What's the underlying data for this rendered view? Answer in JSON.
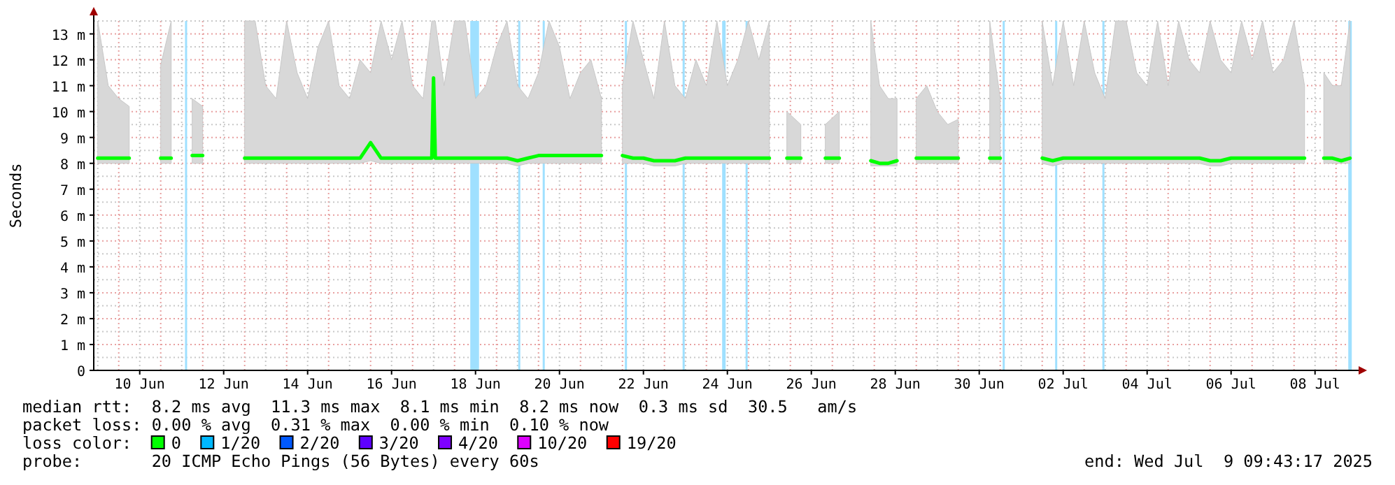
{
  "chart_data": {
    "type": "line",
    "ylabel": "Seconds",
    "legend_title": "loss color:",
    "legend": "bottom",
    "grid": true,
    "marker": "none",
    "line_style": "solid",
    "xlim": [
      "2025-06-09T09:43",
      "2025-07-09T09:43"
    ],
    "xticks": [
      {
        "value": "2025-06-10T12:00",
        "label": "10 Jun"
      },
      {
        "value": "2025-06-12T12:00",
        "label": "12 Jun"
      },
      {
        "value": "2025-06-14T12:00",
        "label": "14 Jun"
      },
      {
        "value": "2025-06-16T12:00",
        "label": "16 Jun"
      },
      {
        "value": "2025-06-18T12:00",
        "label": "18 Jun"
      },
      {
        "value": "2025-06-20T12:00",
        "label": "20 Jun"
      },
      {
        "value": "2025-06-22T12:00",
        "label": "22 Jun"
      },
      {
        "value": "2025-06-24T12:00",
        "label": "24 Jun"
      },
      {
        "value": "2025-06-26T12:00",
        "label": "26 Jun"
      },
      {
        "value": "2025-06-28T12:00",
        "label": "28 Jun"
      },
      {
        "value": "2025-06-30T12:00",
        "label": "30 Jun"
      },
      {
        "value": "2025-07-02T12:00",
        "label": "02 Jul"
      },
      {
        "value": "2025-07-04T12:00",
        "label": "04 Jul"
      },
      {
        "value": "2025-07-06T12:00",
        "label": "06 Jul"
      },
      {
        "value": "2025-07-08T12:00",
        "label": "08 Jul"
      }
    ],
    "ylim": [
      0,
      13.5
    ],
    "yticks": [
      0,
      {
        "value": 1,
        "label": "1 m"
      },
      {
        "value": 2,
        "label": "2 m"
      },
      {
        "value": 3,
        "label": "3 m"
      },
      {
        "value": 4,
        "label": "4 m"
      },
      {
        "value": 5,
        "label": "5 m"
      },
      {
        "value": 6,
        "label": "6 m"
      },
      {
        "value": 7,
        "label": "7 m"
      },
      {
        "value": 8,
        "label": "8 m"
      },
      {
        "value": 9,
        "label": "9 m"
      },
      {
        "value": 10,
        "label": "10 m"
      },
      {
        "value": 11,
        "label": "11 m"
      },
      {
        "value": 12,
        "label": "12 m"
      },
      {
        "value": 13,
        "label": "13 m"
      }
    ],
    "series": [
      {
        "name": "0",
        "color": "#00ff00",
        "x": [
          "2025-06-09T12:00",
          "2025-06-09T18:00",
          "2025-06-10T00:00",
          "2025-06-10T06:00",
          "2025-06-10T12:00",
          "2025-06-10T18:00",
          "2025-06-11T00:00",
          "2025-06-11T06:00",
          "2025-06-11T12:00",
          "2025-06-11T18:00",
          "2025-06-12T00:00",
          "2025-06-12T06:00",
          "2025-06-12T12:00",
          "2025-06-12T18:00",
          "2025-06-13T00:00",
          "2025-06-13T06:00",
          "2025-06-13T12:00",
          "2025-06-13T18:00",
          "2025-06-14T00:00",
          "2025-06-14T06:00",
          "2025-06-14T12:00",
          "2025-06-14T18:00",
          "2025-06-15T00:00",
          "2025-06-15T06:00",
          "2025-06-15T12:00",
          "2025-06-15T18:00",
          "2025-06-16T00:00",
          "2025-06-16T06:00",
          "2025-06-16T12:00",
          "2025-06-16T18:00",
          "2025-06-17T00:00",
          "2025-06-17T06:00",
          "2025-06-17T11:00",
          "2025-06-17T12:00",
          "2025-06-17T13:00",
          "2025-06-17T18:00",
          "2025-06-18T00:00",
          "2025-06-18T06:00",
          "2025-06-18T12:00",
          "2025-06-18T18:00",
          "2025-06-19T00:00",
          "2025-06-19T06:00",
          "2025-06-19T12:00",
          "2025-06-19T18:00",
          "2025-06-20T00:00",
          "2025-06-20T06:00",
          "2025-06-20T12:00",
          "2025-06-20T18:00",
          "2025-06-21T00:00",
          "2025-06-21T06:00",
          "2025-06-21T12:00",
          "2025-06-21T18:00",
          "2025-06-22T00:00",
          "2025-06-22T06:00",
          "2025-06-22T12:00",
          "2025-06-22T18:00",
          "2025-06-23T00:00",
          "2025-06-23T06:00",
          "2025-06-23T12:00",
          "2025-06-23T18:00",
          "2025-06-24T00:00",
          "2025-06-24T06:00",
          "2025-06-24T12:00",
          "2025-06-24T18:00",
          "2025-06-25T00:00",
          "2025-06-25T06:00",
          "2025-06-25T12:00",
          "2025-06-25T18:00",
          "2025-06-25T22:00",
          "2025-06-26T06:00",
          "2025-06-26T09:00",
          "2025-06-26T12:00",
          "2025-06-26T18:00",
          "2025-06-26T20:00",
          "2025-06-27T04:00",
          "2025-06-27T06:00",
          "2025-06-27T12:00",
          "2025-06-27T18:00",
          "2025-06-27T22:00",
          "2025-06-28T03:00",
          "2025-06-28T08:00",
          "2025-06-28T13:00",
          "2025-06-28T18:00",
          "2025-06-29T00:00",
          "2025-06-29T06:00",
          "2025-06-29T12:00",
          "2025-06-29T18:00",
          "2025-06-30T00:00",
          "2025-06-30T06:00",
          "2025-06-30T12:00",
          "2025-06-30T18:00",
          "2025-07-01T00:00",
          "2025-07-01T06:00",
          "2025-07-01T12:00",
          "2025-07-01T18:00",
          "2025-07-02T00:00",
          "2025-07-02T06:00",
          "2025-07-02T12:00",
          "2025-07-02T18:00",
          "2025-07-03T00:00",
          "2025-07-03T06:00",
          "2025-07-03T12:00",
          "2025-07-03T18:00",
          "2025-07-04T00:00",
          "2025-07-04T06:00",
          "2025-07-04T12:00",
          "2025-07-04T18:00",
          "2025-07-05T00:00",
          "2025-07-05T06:00",
          "2025-07-05T12:00",
          "2025-07-05T18:00",
          "2025-07-06T00:00",
          "2025-07-06T06:00",
          "2025-07-06T12:00",
          "2025-07-06T18:00",
          "2025-07-07T00:00",
          "2025-07-07T06:00",
          "2025-07-07T12:00",
          "2025-07-07T18:00",
          "2025-07-08T00:00",
          "2025-07-08T06:00",
          "2025-07-08T12:00",
          "2025-07-08T17:00",
          "2025-07-08T22:00",
          "2025-07-09T03:00",
          "2025-07-09T08:00"
        ],
        "values": [
          8.2,
          8.2,
          8.2,
          8.2,
          null,
          null,
          8.2,
          8.2,
          null,
          8.3,
          8.3,
          null,
          null,
          null,
          8.2,
          8.2,
          8.2,
          8.2,
          8.2,
          8.2,
          8.2,
          8.2,
          8.2,
          8.2,
          8.2,
          8.2,
          8.8,
          8.2,
          8.2,
          8.2,
          8.2,
          8.2,
          8.2,
          11.3,
          8.2,
          8.2,
          8.2,
          8.2,
          8.2,
          8.2,
          8.2,
          8.2,
          8.1,
          8.2,
          8.3,
          8.3,
          8.3,
          8.3,
          8.3,
          8.3,
          8.3,
          null,
          8.3,
          8.2,
          8.2,
          8.1,
          8.1,
          8.1,
          8.2,
          8.2,
          8.2,
          8.2,
          8.2,
          8.2,
          8.2,
          8.2,
          8.2,
          null,
          8.2,
          8.2,
          null,
          null,
          null,
          8.2,
          8.2,
          null,
          null,
          null,
          8.1,
          8.0,
          8.0,
          8.1,
          null,
          8.2,
          8.2,
          8.2,
          8.2,
          8.2,
          null,
          null,
          8.2,
          8.2,
          null,
          null,
          null,
          8.2,
          8.1,
          8.2,
          8.2,
          8.2,
          8.2,
          8.2,
          8.2,
          8.2,
          8.2,
          8.2,
          8.2,
          8.2,
          8.2,
          8.2,
          8.2,
          8.1,
          8.1,
          8.2,
          8.2,
          8.2,
          8.2,
          8.2,
          8.2,
          8.2,
          8.2,
          null,
          8.2,
          8.2,
          8.1,
          8.2
        ],
        "lower": [
          8.0,
          8.0,
          8.0,
          8.0,
          null,
          null,
          8.0,
          8.0,
          null,
          8.0,
          8.0,
          null,
          null,
          null,
          8.0,
          8.0,
          8.0,
          8.0,
          8.0,
          8.0,
          8.0,
          8.0,
          8.0,
          8.0,
          8.0,
          8.0,
          8.1,
          8.0,
          8.0,
          8.0,
          8.0,
          8.0,
          8.0,
          8.0,
          8.0,
          8.0,
          8.0,
          8.0,
          8.0,
          8.0,
          8.0,
          8.0,
          7.9,
          8.0,
          8.0,
          8.0,
          8.0,
          8.0,
          8.0,
          8.0,
          8.0,
          null,
          8.0,
          8.0,
          8.0,
          7.9,
          7.9,
          7.9,
          8.0,
          8.0,
          8.0,
          8.0,
          8.0,
          8.0,
          8.0,
          8.0,
          8.0,
          null,
          8.0,
          8.0,
          null,
          null,
          null,
          8.0,
          8.0,
          null,
          null,
          null,
          7.9,
          7.9,
          7.9,
          7.9,
          null,
          8.0,
          8.0,
          8.0,
          8.0,
          8.0,
          null,
          null,
          8.0,
          8.0,
          null,
          null,
          null,
          8.0,
          7.9,
          8.0,
          8.0,
          8.0,
          8.0,
          8.0,
          8.0,
          8.0,
          8.0,
          8.0,
          8.0,
          8.0,
          8.0,
          8.0,
          8.0,
          7.9,
          7.9,
          8.0,
          8.0,
          8.0,
          8.0,
          8.0,
          8.0,
          8.0,
          8.0,
          null,
          8.0,
          8.0,
          8.0,
          8.0
        ],
        "upper": [
          13.5,
          11,
          10.5,
          10.2,
          null,
          null,
          11.8,
          13.5,
          null,
          10.5,
          10.2,
          null,
          null,
          null,
          13.5,
          13.5,
          11,
          10.5,
          13.5,
          11.5,
          10.5,
          12.5,
          13.5,
          11,
          10.5,
          12,
          11.5,
          13.5,
          12,
          13.5,
          11,
          10.5,
          13.5,
          13.5,
          13.5,
          11,
          13.5,
          13.5,
          10.5,
          11,
          12.5,
          13.5,
          11,
          10.5,
          11.5,
          13.5,
          12.5,
          10.5,
          11.5,
          12,
          10.5,
          null,
          11,
          13.5,
          12,
          10.5,
          13.5,
          11,
          10.5,
          12,
          11,
          13.5,
          11,
          12,
          13.5,
          12,
          13.5,
          null,
          10,
          9.5,
          null,
          null,
          null,
          9.5,
          10,
          null,
          null,
          null,
          13.5,
          11,
          10.5,
          10.5,
          null,
          10.5,
          11,
          10,
          9.5,
          9.7,
          null,
          null,
          13.5,
          10.5,
          null,
          null,
          null,
          13.5,
          11,
          13.5,
          11,
          13.5,
          11.5,
          10.5,
          13.5,
          13.5,
          11.5,
          11,
          13.5,
          11,
          13.5,
          12,
          11.5,
          13.5,
          12,
          11.5,
          13.5,
          12,
          13.5,
          11.5,
          12,
          13.5,
          11,
          null,
          11.5,
          11,
          11,
          13.5
        ]
      },
      {
        "name": "1/20",
        "color": "#00b8ff"
      },
      {
        "name": "2/20",
        "color": "#0059ff"
      },
      {
        "name": "3/20",
        "color": "#5e00ff"
      },
      {
        "name": "4/20",
        "color": "#7e00ff"
      },
      {
        "name": "10/20",
        "color": "#dd00ff"
      },
      {
        "name": "19/20",
        "color": "#ff0000"
      }
    ],
    "bands": [
      {
        "axis": "x",
        "from": "2025-06-18T09:00",
        "to": "2025-06-18T14:00",
        "color": "#9fe0ff"
      },
      {
        "axis": "x",
        "from": "2025-06-24T09:00",
        "to": "2025-06-24T11:00",
        "color": "#9fe0ff"
      },
      {
        "axis": "x",
        "from": "2025-07-09T07:00",
        "to": "2025-07-09T09:00",
        "color": "#9fe0ff"
      }
    ],
    "ref_lines": [
      {
        "axis": "x",
        "value": "2025-06-11T14:30",
        "color": "#9fe0ff"
      },
      {
        "axis": "x",
        "value": "2025-06-19T13:00",
        "color": "#9fe0ff"
      },
      {
        "axis": "x",
        "value": "2025-06-20T03:00",
        "color": "#9fe0ff"
      },
      {
        "axis": "x",
        "value": "2025-06-22T02:00",
        "color": "#9fe0ff"
      },
      {
        "axis": "x",
        "value": "2025-06-23T11:00",
        "color": "#9fe0ff"
      },
      {
        "axis": "x",
        "value": "2025-06-24T23:00",
        "color": "#9fe0ff"
      },
      {
        "axis": "x",
        "value": "2025-07-01T02:00",
        "color": "#9fe0ff"
      },
      {
        "axis": "x",
        "value": "2025-07-02T08:00",
        "color": "#9fe0ff"
      },
      {
        "axis": "x",
        "value": "2025-07-03T11:00",
        "color": "#9fe0ff"
      }
    ],
    "annotations": [
      "median rtt:  8.2 ms avg  11.3 ms max  8.1 ms min  8.2 ms now  0.3 ms sd  30.5   am/s",
      "packet loss: 0.00 % avg  0.31 % max  0.00 % min  0.10 % now",
      "probe:       20 ICMP Echo Pings (56 Bytes) every 60s",
      "end: Wed Jul  9 09:43:17 2025"
    ]
  }
}
